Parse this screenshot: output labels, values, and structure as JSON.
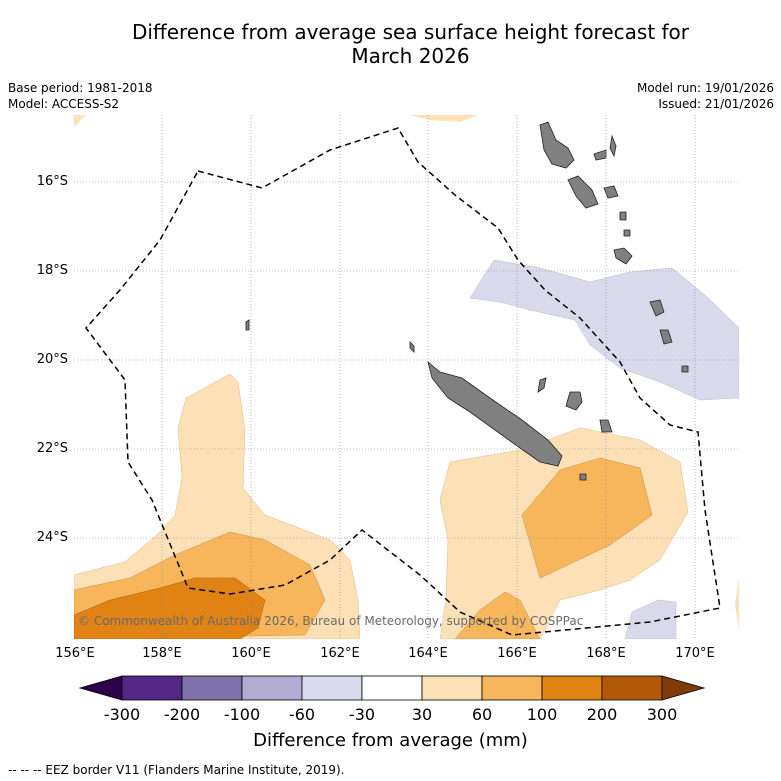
{
  "title": "Difference from average sea surface height forecast for\nMarch 2026",
  "meta": {
    "base_period": "Base period: 1981-2018",
    "model": "Model: ACCESS-S2",
    "model_run": "Model run: 19/01/2026",
    "issued": "Issued: 21/01/2026"
  },
  "axes": {
    "x_ticks": [
      "156°E",
      "158°E",
      "160°E",
      "162°E",
      "164°E",
      "166°E",
      "168°E",
      "170°E"
    ],
    "y_ticks": [
      "16°S",
      "18°S",
      "20°S",
      "22°S",
      "24°S"
    ]
  },
  "colorbar": {
    "labels": [
      "-300",
      "-200",
      "-100",
      "-60",
      "-30",
      "30",
      "60",
      "100",
      "200",
      "300"
    ],
    "colors": [
      "#2d004b",
      "#542788",
      "#8073ac",
      "#b2abd2",
      "#d8daeb",
      "#ffffff",
      "#fee0b6",
      "#f8b65c",
      "#e08214",
      "#b35806",
      "#7f3b08"
    ],
    "title": "Difference from average (mm)"
  },
  "copyright": "© Commonwealth of Australia 2026, Bureau of Meteorology, supported by COSPPac",
  "footer": "-- -- -- EEZ border V11 (Flanders Marine Institute, 2019).",
  "legend_colors": {
    "land": "#808080",
    "eez_border": "#000000",
    "grid": "#888888"
  }
}
